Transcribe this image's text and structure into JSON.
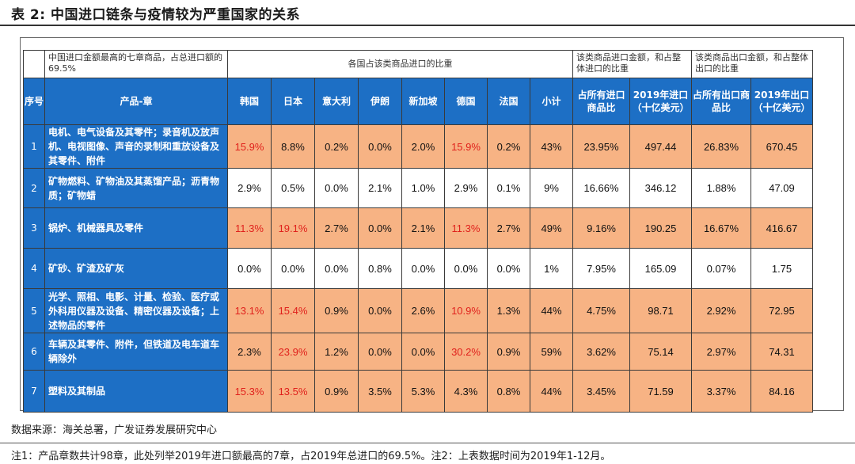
{
  "title": "表 2:  中国进口链条与疫情较为严重国家的关系",
  "table": {
    "top_note_left": "中国进口金额最高的七章商品，占总进口额的69.5%",
    "top_note_countries": "各国占该类商品进口的比重",
    "top_note_import": "该类商品进口金额，和占整体进口的比重",
    "top_note_export": "该类商品出口金额，和占整体出口的比重",
    "headers": [
      "序号",
      "产品-章",
      "韩国",
      "日本",
      "意大利",
      "伊朗",
      "新加坡",
      "德国",
      "法国",
      "小计",
      "占所有进口商品比",
      "2019年进口（十亿美元）",
      "占所有出口商品比",
      "2019年出口（十亿美元）"
    ],
    "rows": [
      {
        "idx": "1",
        "product": "电机、电气设备及其零件；录音机及放声机、电视图像、声音的录制和重放设备及其零件、附件",
        "values": [
          "15.9%",
          "8.8%",
          "0.2%",
          "0.0%",
          "2.0%",
          "15.9%",
          "0.2%",
          "43%",
          "23.95%",
          "497.44",
          "26.83%",
          "670.45"
        ],
        "red": [
          true,
          false,
          false,
          false,
          false,
          true,
          false,
          false,
          false,
          false,
          false,
          false
        ],
        "shaded": true
      },
      {
        "idx": "2",
        "product": "矿物燃料、矿物油及其蒸馏产品；沥青物质；矿物蜡",
        "values": [
          "2.9%",
          "0.5%",
          "0.0%",
          "2.1%",
          "1.0%",
          "2.9%",
          "0.1%",
          "9%",
          "16.66%",
          "346.12",
          "1.88%",
          "47.09"
        ],
        "red": [
          false,
          false,
          false,
          false,
          false,
          false,
          false,
          false,
          false,
          false,
          false,
          false
        ],
        "shaded": false
      },
      {
        "idx": "3",
        "product": "锅炉、机械器具及零件",
        "values": [
          "11.3%",
          "19.1%",
          "2.7%",
          "0.0%",
          "2.1%",
          "11.3%",
          "2.7%",
          "49%",
          "9.16%",
          "190.25",
          "16.67%",
          "416.67"
        ],
        "red": [
          true,
          true,
          false,
          false,
          false,
          true,
          false,
          false,
          false,
          false,
          false,
          false
        ],
        "shaded": true
      },
      {
        "idx": "4",
        "product": "矿砂、矿渣及矿灰",
        "values": [
          "0.0%",
          "0.0%",
          "0.0%",
          "0.8%",
          "0.0%",
          "0.0%",
          "0.0%",
          "1%",
          "7.95%",
          "165.09",
          "0.07%",
          "1.75"
        ],
        "red": [
          false,
          false,
          false,
          false,
          false,
          false,
          false,
          false,
          false,
          false,
          false,
          false
        ],
        "shaded": false
      },
      {
        "idx": "5",
        "product": "光学、照相、电影、计量、检验、医疗或外科用仪器及设备、精密仪器及设备；上述物品的零件",
        "values": [
          "13.1%",
          "15.4%",
          "0.9%",
          "0.0%",
          "2.6%",
          "10.9%",
          "1.3%",
          "44%",
          "4.75%",
          "98.71",
          "2.92%",
          "72.95"
        ],
        "red": [
          true,
          true,
          false,
          false,
          false,
          true,
          false,
          false,
          false,
          false,
          false,
          false
        ],
        "shaded": true
      },
      {
        "idx": "6",
        "product": "车辆及其零件、附件，但铁道及电车道车辆除外",
        "values": [
          "2.3%",
          "23.9%",
          "1.2%",
          "0.0%",
          "0.0%",
          "30.2%",
          "0.9%",
          "59%",
          "3.62%",
          "75.14",
          "2.97%",
          "74.31"
        ],
        "red": [
          false,
          true,
          false,
          false,
          false,
          true,
          false,
          false,
          false,
          false,
          false,
          false
        ],
        "shaded": true
      },
      {
        "idx": "7",
        "product": "塑料及其制品",
        "values": [
          "15.3%",
          "13.5%",
          "0.9%",
          "3.5%",
          "5.3%",
          "4.3%",
          "0.8%",
          "44%",
          "3.45%",
          "71.59",
          "3.37%",
          "84.16"
        ],
        "red": [
          true,
          true,
          false,
          false,
          false,
          false,
          false,
          false,
          false,
          false,
          false,
          false
        ],
        "shaded": true
      }
    ]
  },
  "source": "数据来源：海关总署，广发证券发展研究中心",
  "note": "注1：产品章数共计98章，此处列举2019年进口额最高的7章，占2019年总进口的69.5%。注2：上表数据时间为2019年1-12月。",
  "colors": {
    "header_blue": "#1d6fc5",
    "row_orange": "#f7b384",
    "highlight_red": "#e0211c"
  }
}
